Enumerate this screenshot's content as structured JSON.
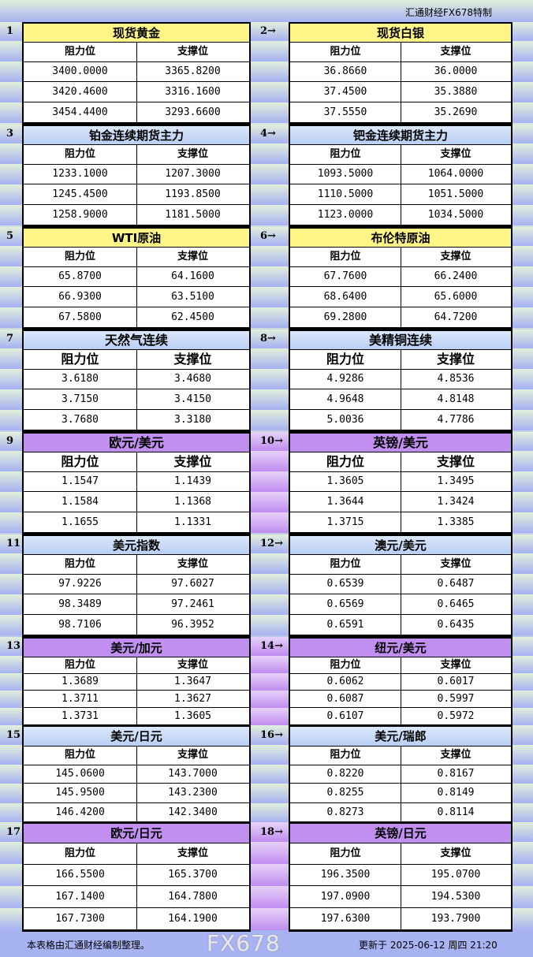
{
  "header": {
    "brand": "汇通财经FX678特制"
  },
  "col_labels": {
    "resistance": "阻力位",
    "support": "支撑位"
  },
  "sections": [
    {
      "left": {
        "num": "1",
        "title": "现货黄金",
        "color": "yellow",
        "rows": [
          [
            "3400.0000",
            "3365.8200"
          ],
          [
            "3420.4600",
            "3316.1600"
          ],
          [
            "3454.4400",
            "3293.6600"
          ]
        ]
      },
      "right": {
        "num": "2→",
        "title": "现货白银",
        "color": "yellow",
        "rows": [
          [
            "36.8660",
            "36.0000"
          ],
          [
            "37.4500",
            "35.3880"
          ],
          [
            "37.5550",
            "35.2690"
          ]
        ]
      }
    },
    {
      "left": {
        "num": "3",
        "title": "铂金连续期货主力",
        "color": "blue",
        "rows": [
          [
            "1233.1000",
            "1207.3000"
          ],
          [
            "1245.4500",
            "1193.8500"
          ],
          [
            "1258.9000",
            "1181.5000"
          ]
        ]
      },
      "right": {
        "num": "4→",
        "title": "钯金连续期货主力",
        "color": "blue",
        "rows": [
          [
            "1093.5000",
            "1064.0000"
          ],
          [
            "1110.5000",
            "1051.5000"
          ],
          [
            "1123.0000",
            "1034.5000"
          ]
        ]
      }
    },
    {
      "left": {
        "num": "5",
        "title": "WTI原油",
        "color": "yellow",
        "rows": [
          [
            "65.8700",
            "64.1600"
          ],
          [
            "66.9300",
            "63.5100"
          ],
          [
            "67.5800",
            "62.4500"
          ]
        ]
      },
      "right": {
        "num": "6→",
        "title": "布伦特原油",
        "color": "yellow",
        "rows": [
          [
            "67.7600",
            "66.2400"
          ],
          [
            "68.6400",
            "65.6000"
          ],
          [
            "69.2800",
            "64.7200"
          ]
        ]
      }
    },
    {
      "left": {
        "num": "7",
        "title": "天然气连续",
        "color": "blue",
        "rows": [
          [
            "3.6180",
            "3.4680"
          ],
          [
            "3.7150",
            "3.4150"
          ],
          [
            "3.7680",
            "3.3180"
          ]
        ]
      },
      "right": {
        "num": "8→",
        "title": "美精铜连续",
        "color": "blue",
        "rows": [
          [
            "4.9286",
            "4.8536"
          ],
          [
            "4.9648",
            "4.8148"
          ],
          [
            "5.0036",
            "4.7786"
          ]
        ]
      }
    },
    {
      "left": {
        "num": "9",
        "title": "欧元/美元",
        "color": "purple",
        "rows": [
          [
            "1.1547",
            "1.1439"
          ],
          [
            "1.1584",
            "1.1368"
          ],
          [
            "1.1655",
            "1.1331"
          ]
        ]
      },
      "right": {
        "num": "10→",
        "title": "英镑/美元",
        "color": "purple",
        "rows": [
          [
            "1.3605",
            "1.3495"
          ],
          [
            "1.3644",
            "1.3424"
          ],
          [
            "1.3715",
            "1.3385"
          ]
        ]
      }
    },
    {
      "left": {
        "num": "11",
        "title": "美元指数",
        "color": "blue",
        "rows": [
          [
            "97.9226",
            "97.6027"
          ],
          [
            "98.3489",
            "97.2461"
          ],
          [
            "98.7106",
            "96.3952"
          ]
        ]
      },
      "right": {
        "num": "12→",
        "title": "澳元/美元",
        "color": "blue",
        "rows": [
          [
            "0.6539",
            "0.6487"
          ],
          [
            "0.6569",
            "0.6465"
          ],
          [
            "0.6591",
            "0.6435"
          ]
        ]
      }
    },
    {
      "left": {
        "num": "13",
        "title": "美元/加元",
        "color": "purple",
        "rows": [
          [
            "1.3689",
            "1.3647"
          ],
          [
            "1.3711",
            "1.3627"
          ],
          [
            "1.3731",
            "1.3605"
          ]
        ]
      },
      "right": {
        "num": "14→",
        "title": "纽元/美元",
        "color": "purple",
        "rows": [
          [
            "0.6062",
            "0.6017"
          ],
          [
            "0.6087",
            "0.5997"
          ],
          [
            "0.6107",
            "0.5972"
          ]
        ]
      }
    },
    {
      "left": {
        "num": "15",
        "title": "美元/日元",
        "color": "blue",
        "rows": [
          [
            "145.0600",
            "143.7000"
          ],
          [
            "145.9500",
            "143.2300"
          ],
          [
            "146.4200",
            "142.3400"
          ]
        ]
      },
      "right": {
        "num": "16→",
        "title": "美元/瑞郎",
        "color": "blue",
        "rows": [
          [
            "0.8220",
            "0.8167"
          ],
          [
            "0.8255",
            "0.8149"
          ],
          [
            "0.8273",
            "0.8114"
          ]
        ]
      }
    },
    {
      "left": {
        "num": "17",
        "title": "欧元/日元",
        "color": "purple",
        "rows": [
          [
            "166.5500",
            "165.3700"
          ],
          [
            "167.1400",
            "164.7800"
          ],
          [
            "167.7300",
            "164.1900"
          ]
        ]
      },
      "right": {
        "num": "18→",
        "title": "英镑/日元",
        "color": "purple",
        "rows": [
          [
            "196.3500",
            "195.0700"
          ],
          [
            "197.0900",
            "194.5300"
          ],
          [
            "197.6300",
            "193.7900"
          ]
        ]
      }
    }
  ],
  "footer": {
    "note": "本表格由汇通财经编制整理。",
    "updated": "更新于 2025-06-12 周四 21:20",
    "watermark": "FX678"
  }
}
